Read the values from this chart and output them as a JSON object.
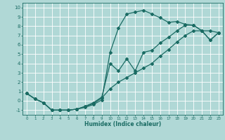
{
  "xlabel": "Humidex (Indice chaleur)",
  "xlim": [
    -0.5,
    23.5
  ],
  "ylim": [
    -1.5,
    10.5
  ],
  "xticks": [
    0,
    1,
    2,
    3,
    4,
    5,
    6,
    7,
    8,
    9,
    10,
    11,
    12,
    13,
    14,
    15,
    16,
    17,
    18,
    19,
    20,
    21,
    22,
    23
  ],
  "yticks": [
    -1,
    0,
    1,
    2,
    3,
    4,
    5,
    6,
    7,
    8,
    9,
    10
  ],
  "bg_color": "#b0d8d6",
  "grid_color": "#ffffff",
  "line_color": "#1a6b63",
  "line1_x": [
    0,
    1,
    2,
    3,
    4,
    5,
    6,
    7,
    8,
    9,
    10,
    11,
    12,
    13,
    14,
    15,
    16,
    17,
    18,
    19,
    20,
    21,
    22,
    23
  ],
  "line1_y": [
    0.8,
    0.2,
    -0.2,
    -1.0,
    -1.0,
    -1.0,
    -0.9,
    -0.7,
    -0.4,
    0.1,
    5.2,
    7.8,
    9.3,
    9.5,
    9.7,
    9.3,
    8.9,
    8.4,
    8.5,
    8.2,
    8.1,
    7.5,
    7.5,
    7.3
  ],
  "line2_x": [
    0,
    1,
    2,
    3,
    4,
    5,
    6,
    7,
    8,
    9,
    10,
    11,
    12,
    13,
    14,
    15,
    16,
    17,
    18,
    19,
    20,
    21,
    22,
    23
  ],
  "line2_y": [
    0.8,
    0.2,
    -0.2,
    -1.0,
    -1.0,
    -1.0,
    -0.9,
    -0.6,
    -0.3,
    0.3,
    1.3,
    2.0,
    2.5,
    3.0,
    3.5,
    4.0,
    4.8,
    5.5,
    6.3,
    7.0,
    7.5,
    7.5,
    6.5,
    7.3
  ],
  "line3_x": [
    0,
    1,
    2,
    3,
    4,
    5,
    6,
    7,
    8,
    9,
    10,
    11,
    12,
    13,
    14,
    15,
    16,
    17,
    18,
    19,
    20,
    21,
    22,
    23
  ],
  "line3_y": [
    0.8,
    0.2,
    -0.2,
    -1.0,
    -1.0,
    -1.0,
    -0.9,
    -0.6,
    -0.2,
    0.4,
    4.0,
    3.2,
    4.5,
    3.2,
    5.2,
    5.4,
    6.2,
    6.8,
    7.5,
    8.1,
    8.1,
    7.5,
    6.5,
    7.3
  ],
  "marker": "D",
  "marker_size": 2.0,
  "line_width": 0.9
}
